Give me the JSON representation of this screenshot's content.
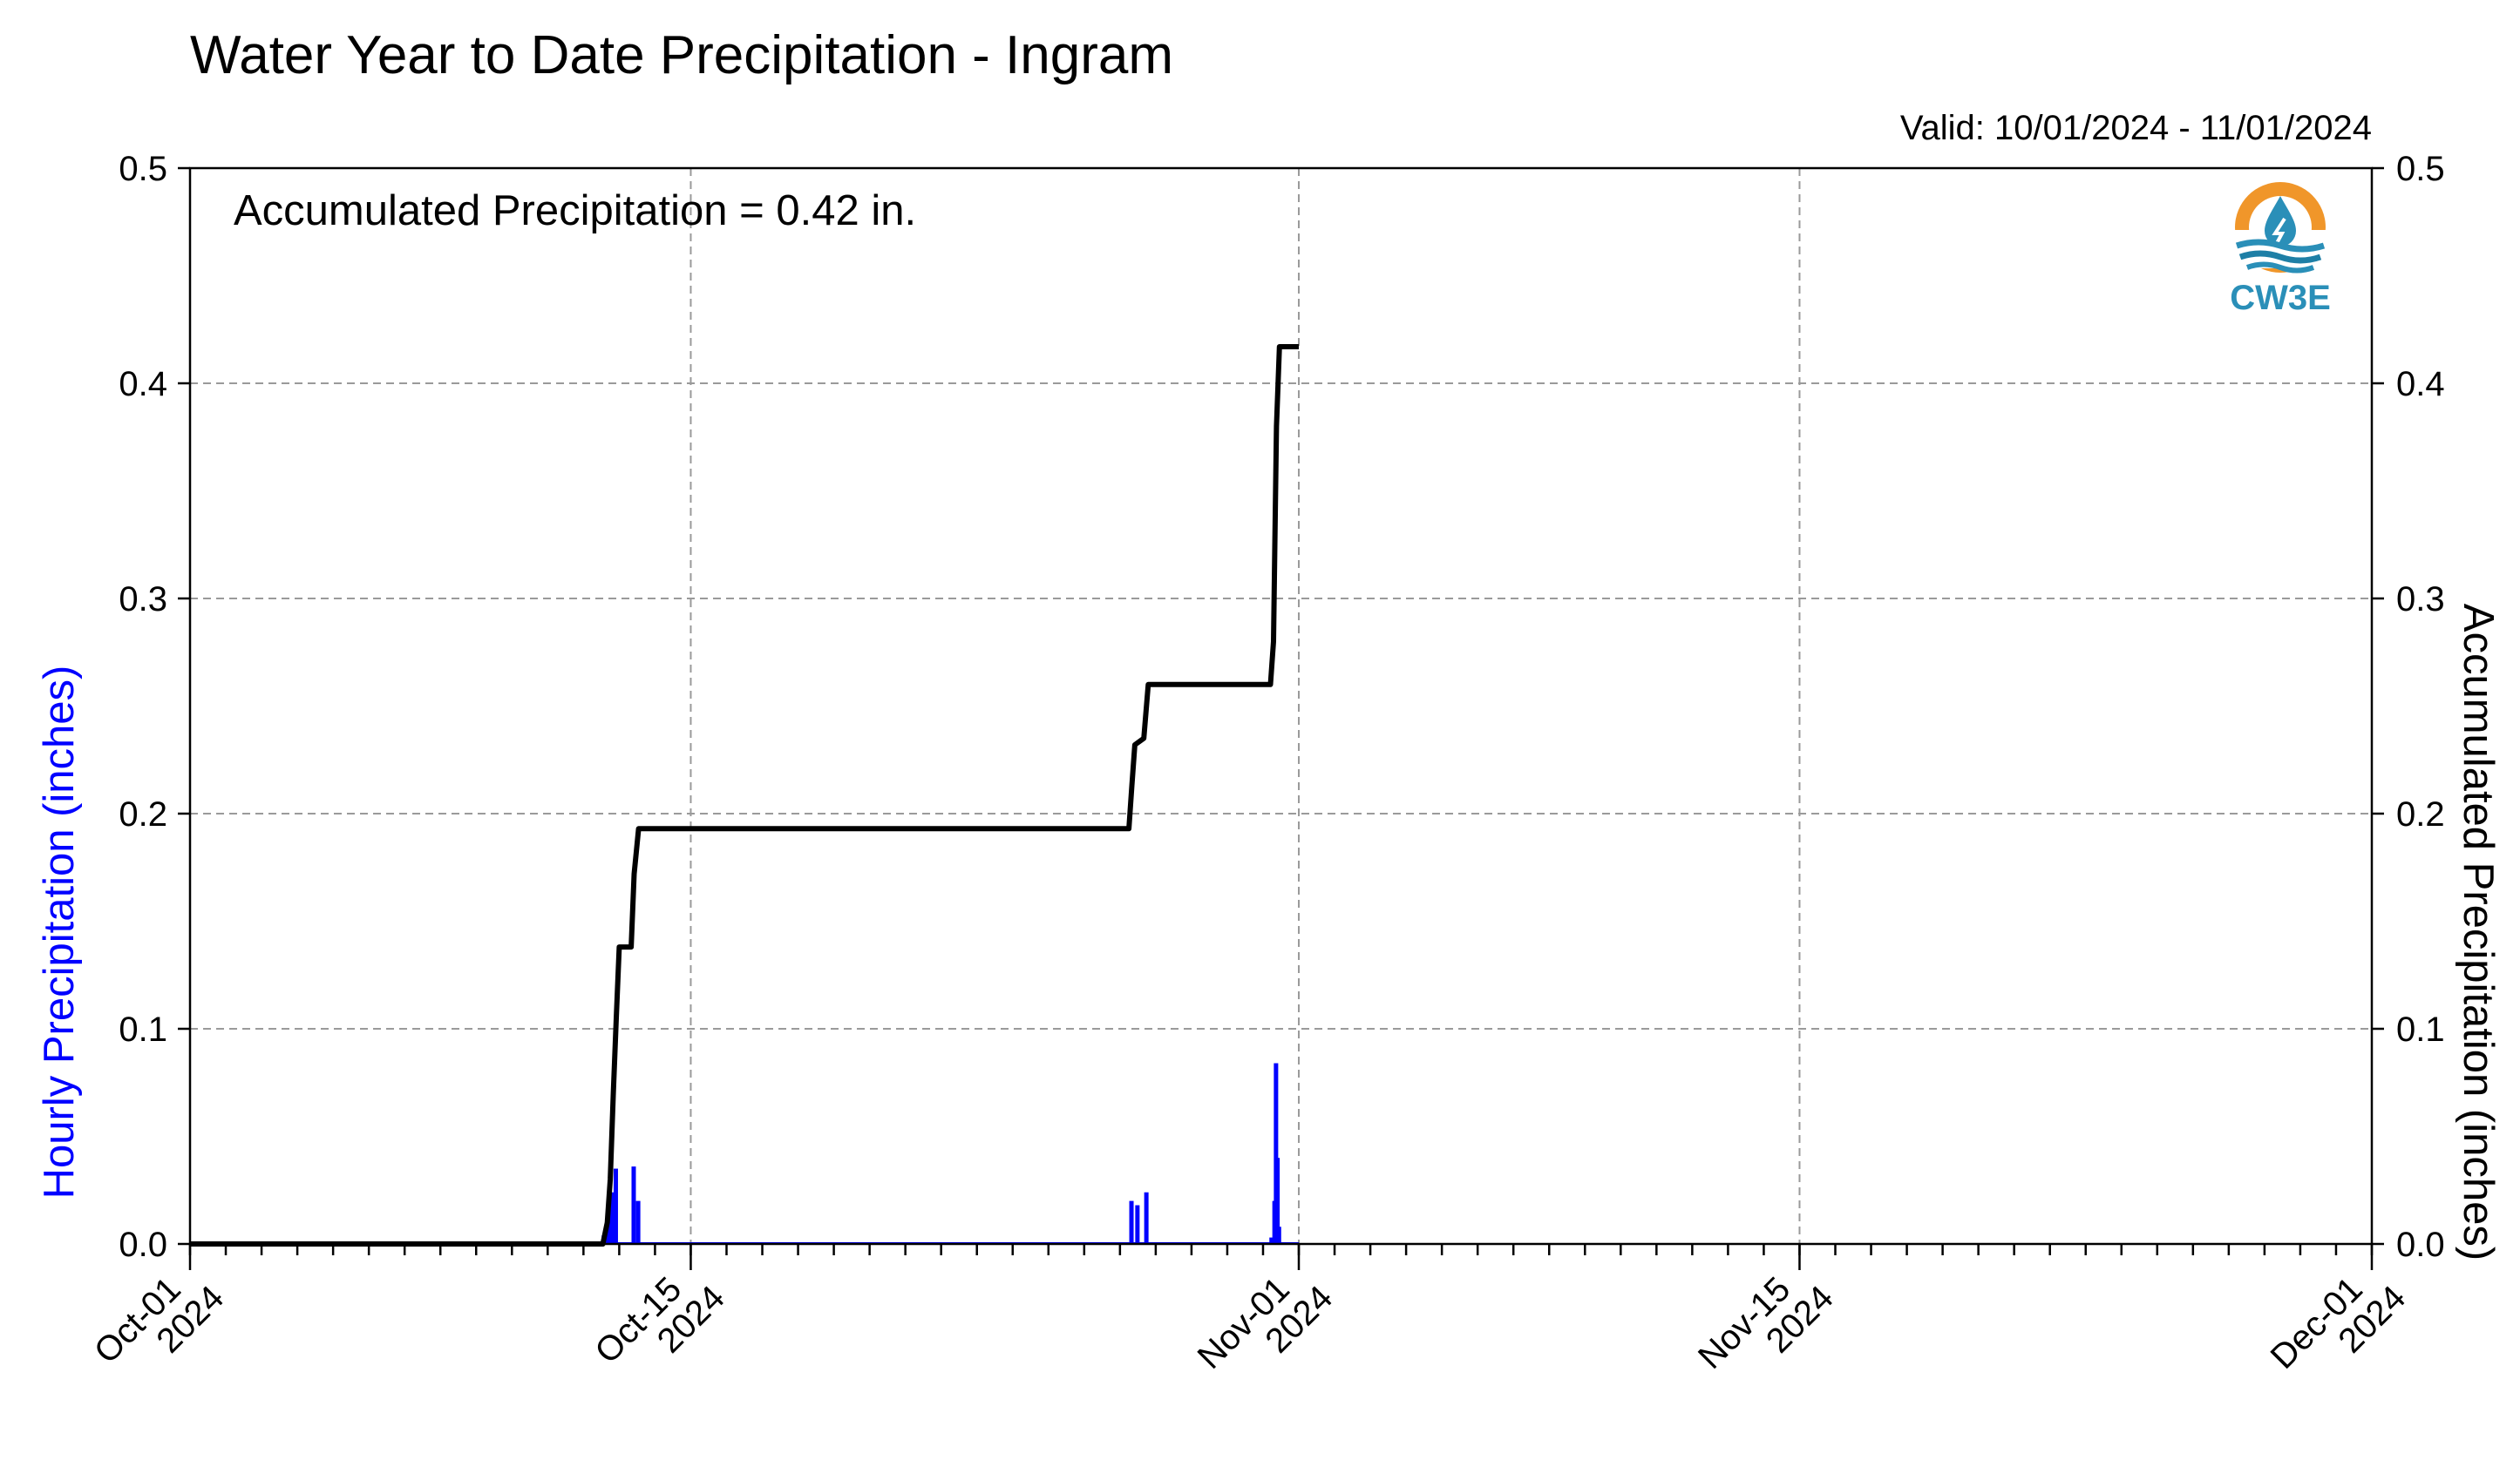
{
  "chart_data": {
    "type": "line",
    "title": "Water Year to Date Precipitation - Ingram",
    "valid_text": "Valid: 10/01/2024 - 11/01/2024",
    "annotation": "Accumulated Precipitation = 0.42 in.",
    "ylabel_left": "Hourly Precipitation (inches)",
    "ylabel_right": "Accumulated Precipitation (inches)",
    "ylim": [
      0,
      0.5
    ],
    "y_ticks": [
      "0.0",
      "0.1",
      "0.2",
      "0.3",
      "0.4",
      "0.5"
    ],
    "xlim": [
      "2024-10-01",
      "2024-12-01"
    ],
    "x_ticks": [
      {
        "date": "2024-10-01",
        "line1": "Oct-01",
        "line2": "2024"
      },
      {
        "date": "2024-10-15",
        "line1": "Oct-15",
        "line2": "2024"
      },
      {
        "date": "2024-11-01",
        "line1": "Nov-01",
        "line2": "2024"
      },
      {
        "date": "2024-11-15",
        "line1": "Nov-15",
        "line2": "2024"
      },
      {
        "date": "2024-12-01",
        "line1": "Dec-01",
        "line2": "2024"
      }
    ],
    "grid": true,
    "series": [
      {
        "color": "#0000ff",
        "style": "bar",
        "points": [
          {
            "t": "2024-10-12T14:00",
            "v": 0.004
          },
          {
            "t": "2024-10-12T16:00",
            "v": 0.008
          },
          {
            "t": "2024-10-12T18:00",
            "v": 0.016
          },
          {
            "t": "2024-10-12T20:00",
            "v": 0.024
          },
          {
            "t": "2024-10-12T22:00",
            "v": 0.035
          },
          {
            "t": "2024-10-13T10:00",
            "v": 0.036
          },
          {
            "t": "2024-10-13T13:00",
            "v": 0.02
          },
          {
            "t": "2024-10-27T08:00",
            "v": 0.02
          },
          {
            "t": "2024-10-27T12:00",
            "v": 0.018
          },
          {
            "t": "2024-10-27T18:00",
            "v": 0.024
          },
          {
            "t": "2024-10-31T06:00",
            "v": 0.003
          },
          {
            "t": "2024-10-31T08:00",
            "v": 0.02
          },
          {
            "t": "2024-10-31T09:00",
            "v": 0.084
          },
          {
            "t": "2024-10-31T10:00",
            "v": 0.04
          },
          {
            "t": "2024-10-31T11:00",
            "v": 0.008
          }
        ]
      },
      {
        "color": "#000000",
        "style": "line",
        "points": [
          {
            "t": "2024-10-01T00:00",
            "v": 0.0
          },
          {
            "t": "2024-10-12T13:00",
            "v": 0.0
          },
          {
            "t": "2024-10-12T16:00",
            "v": 0.01
          },
          {
            "t": "2024-10-12T18:00",
            "v": 0.03
          },
          {
            "t": "2024-10-12T20:00",
            "v": 0.07
          },
          {
            "t": "2024-10-12T22:00",
            "v": 0.105
          },
          {
            "t": "2024-10-13T00:00",
            "v": 0.138
          },
          {
            "t": "2024-10-13T08:00",
            "v": 0.138
          },
          {
            "t": "2024-10-13T10:00",
            "v": 0.172
          },
          {
            "t": "2024-10-13T13:00",
            "v": 0.193
          },
          {
            "t": "2024-10-27T06:00",
            "v": 0.193
          },
          {
            "t": "2024-10-27T08:00",
            "v": 0.213
          },
          {
            "t": "2024-10-27T10:00",
            "v": 0.232
          },
          {
            "t": "2024-10-27T16:00",
            "v": 0.235
          },
          {
            "t": "2024-10-27T19:00",
            "v": 0.26
          },
          {
            "t": "2024-10-31T05:00",
            "v": 0.26
          },
          {
            "t": "2024-10-31T07:00",
            "v": 0.28
          },
          {
            "t": "2024-10-31T09:00",
            "v": 0.38
          },
          {
            "t": "2024-10-31T11:00",
            "v": 0.417
          },
          {
            "t": "2024-11-01T00:00",
            "v": 0.417
          }
        ]
      }
    ]
  },
  "logo": {
    "text": "CW3E",
    "colors": {
      "orange": "#f0962a",
      "blue": "#2a8fb8",
      "teal": "#1e7fa6"
    }
  }
}
